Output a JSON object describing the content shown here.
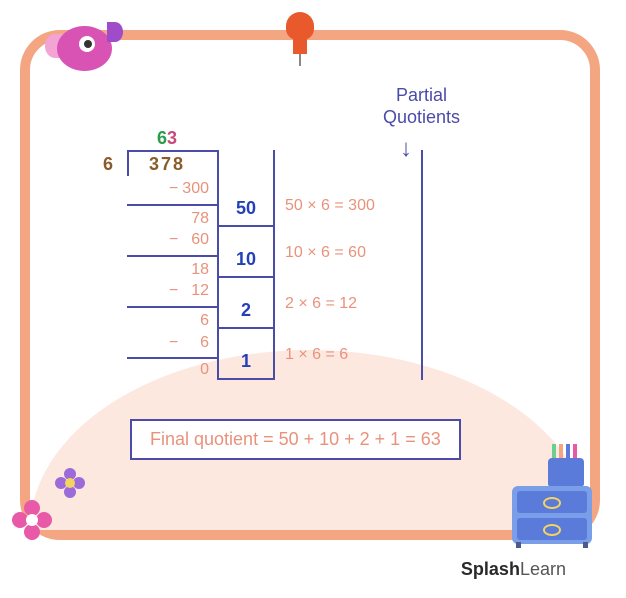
{
  "header": {
    "label_line1": "Partial",
    "label_line2": "Quotients"
  },
  "division": {
    "divisor": "6",
    "dividend": "378",
    "quotient_tens": "6",
    "quotient_ones": "3",
    "steps": [
      {
        "start": "",
        "sub": "300",
        "pq": "50",
        "explain": "50 × 6 = 300"
      },
      {
        "start": "78",
        "sub": "60",
        "pq": "10",
        "explain": "10 × 6 = 60"
      },
      {
        "start": "18",
        "sub": "12",
        "pq": "2",
        "explain": "2 × 6 = 12"
      },
      {
        "start": "6",
        "sub": "6",
        "pq": "1",
        "explain": "1 × 6 = 6"
      }
    ],
    "remainder": "0"
  },
  "final": "Final quotient = 50 + 10 + 2 + 1 = 63",
  "brand": {
    "part1": "Splash",
    "part2": "Learn"
  },
  "colors": {
    "frame": "#f4a582",
    "blob": "#fde8e0",
    "rule": "#4b4ba8",
    "label": "#4b4ba8",
    "work_text": "#e8927c",
    "pq_text": "#2440b8",
    "divisor_text": "#8b5a2b",
    "quotient_green": "#2a9d4a",
    "quotient_pink": "#c94a7a"
  }
}
